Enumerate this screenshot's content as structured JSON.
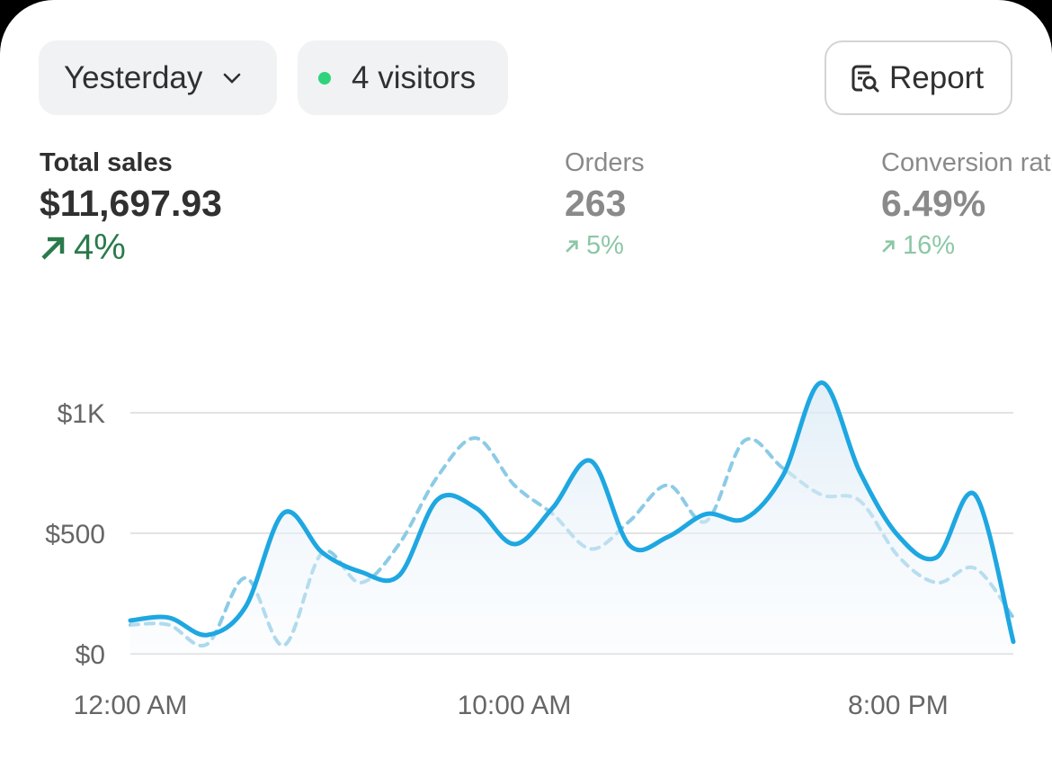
{
  "filters": {
    "period": "Yesterday",
    "visitors": "4 visitors",
    "report": "Report"
  },
  "metrics": [
    {
      "label": "Total sales",
      "value": "$11,697.93",
      "change": "4%"
    },
    {
      "label": "Orders",
      "value": "263",
      "change": "5%"
    },
    {
      "label": "Conversion rate",
      "value": "6.49%",
      "change": "16%"
    }
  ],
  "chart_data": {
    "type": "line",
    "categories": [
      "12:00 AM",
      null,
      null,
      null,
      null,
      null,
      null,
      null,
      null,
      null,
      "10:00 AM",
      null,
      null,
      null,
      null,
      null,
      null,
      null,
      null,
      null,
      "8:00 PM",
      null,
      null,
      null
    ],
    "series": [
      {
        "color": "#1ea7e1",
        "style": "solid",
        "area": true,
        "values": [
          138,
          150,
          78,
          195,
          585,
          420,
          340,
          325,
          640,
          605,
          455,
          605,
          800,
          450,
          485,
          580,
          560,
          740,
          1125,
          755,
          490,
          400,
          660,
          50
        ]
      },
      {
        "color": "#8ccbe6",
        "style": "dashed",
        "values": [
          120,
          120,
          40,
          315,
          35,
          420,
          295,
          455,
          735,
          895,
          700,
          580,
          435,
          550,
          700,
          550,
          885,
          770,
          660,
          635,
          405,
          295,
          355,
          150
        ]
      }
    ],
    "ylim": [
      0,
      1250
    ],
    "yticks": [
      {
        "value": 0,
        "label": "$0"
      },
      {
        "value": 500,
        "label": "$500"
      },
      {
        "value": 1000,
        "label": "$1K"
      }
    ],
    "grid": true
  }
}
